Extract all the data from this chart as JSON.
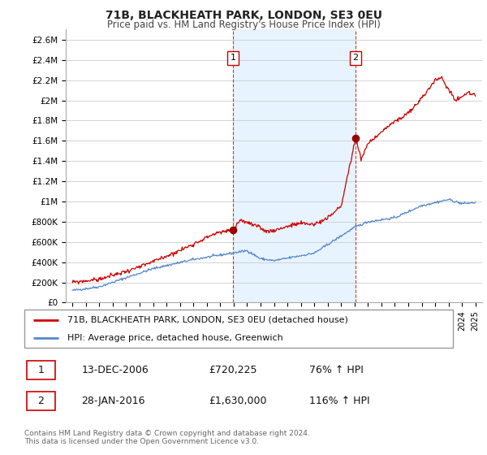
{
  "title": "71B, BLACKHEATH PARK, LONDON, SE3 0EU",
  "subtitle": "Price paid vs. HM Land Registry's House Price Index (HPI)",
  "ylim": [
    0,
    2700000
  ],
  "yticks": [
    0,
    200000,
    400000,
    600000,
    800000,
    1000000,
    1200000,
    1400000,
    1600000,
    1800000,
    2000000,
    2200000,
    2400000,
    2600000
  ],
  "ytick_labels": [
    "£0",
    "£200K",
    "£400K",
    "£600K",
    "£800K",
    "£1M",
    "£1.2M",
    "£1.4M",
    "£1.6M",
    "£1.8M",
    "£2M",
    "£2.2M",
    "£2.4M",
    "£2.6M"
  ],
  "xlim_start": 1994.5,
  "xlim_end": 2025.5,
  "sale1_x": 2006.95,
  "sale1_y": 720225,
  "sale1_label": "1",
  "sale2_x": 2016.08,
  "sale2_y": 1630000,
  "sale2_label": "2",
  "red_line_color": "#cc0000",
  "blue_line_color": "#5588cc",
  "dot_color": "#990000",
  "annotation_box_color": "#cc0000",
  "shade_color": "#ddeeff",
  "grid_color": "#cccccc",
  "background_color": "#ffffff",
  "legend_label1": "71B, BLACKHEATH PARK, LONDON, SE3 0EU (detached house)",
  "legend_label2": "HPI: Average price, detached house, Greenwich",
  "footer1": "Contains HM Land Registry data © Crown copyright and database right 2024.",
  "footer2": "This data is licensed under the Open Government Licence v3.0.",
  "table_row1_num": "1",
  "table_row1_date": "13-DEC-2006",
  "table_row1_price": "£720,225",
  "table_row1_hpi": "76% ↑ HPI",
  "table_row2_num": "2",
  "table_row2_date": "28-JAN-2016",
  "table_row2_price": "£1,630,000",
  "table_row2_hpi": "116% ↑ HPI",
  "dashed_line1_x": 2006.95,
  "dashed_line2_x": 2016.08
}
